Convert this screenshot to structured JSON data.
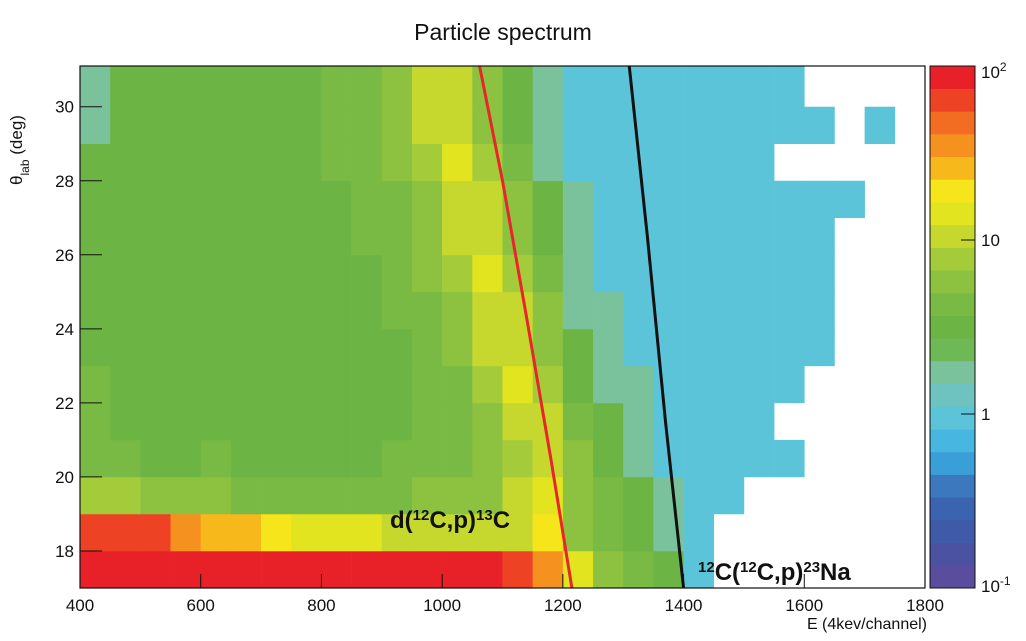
{
  "chart_data": {
    "type": "heatmap",
    "title": "Particle spectrum",
    "x_label": "E (4kev/channel)",
    "y_label_parts": [
      {
        "text": "θ"
      },
      {
        "text": "lab",
        "sub": true
      },
      {
        "text": " (deg)"
      }
    ],
    "xlim": [
      400,
      1800
    ],
    "ylim": [
      17,
      31.1
    ],
    "xticks": [
      400,
      600,
      800,
      1000,
      1200,
      1400,
      1600,
      1800
    ],
    "yticks": [
      18,
      20,
      22,
      24,
      26,
      28,
      30
    ],
    "xbins": [
      400,
      450,
      500,
      550,
      600,
      650,
      700,
      750,
      800,
      850,
      900,
      950,
      1000,
      1050,
      1100,
      1150,
      1200,
      1250,
      1300,
      1350,
      1400,
      1450,
      1500,
      1550,
      1600,
      1650,
      1700,
      1750,
      1800
    ],
    "ybins": [
      17,
      18,
      19,
      20,
      21,
      22,
      23,
      24,
      25,
      26,
      27,
      28,
      29,
      30,
      31.1
    ],
    "z": [
      [
        80,
        80,
        80,
        80,
        80,
        80,
        80,
        80,
        80,
        80,
        80,
        80,
        80,
        80,
        70,
        40,
        15,
        5,
        4,
        3,
        1,
        null,
        null,
        null,
        null,
        null,
        null,
        null
      ],
      [
        70,
        70,
        60,
        40,
        30,
        25,
        20,
        15,
        15,
        15,
        12,
        12,
        10,
        10,
        12,
        20,
        6,
        4,
        3,
        2,
        1,
        null,
        null,
        null,
        null,
        null,
        null,
        null
      ],
      [
        8,
        8,
        6,
        5,
        5,
        4,
        4,
        4,
        4,
        4,
        4,
        5,
        5,
        6,
        10,
        15,
        6,
        4,
        3,
        2,
        1,
        1,
        null,
        null,
        null,
        null,
        null,
        null
      ],
      [
        4,
        4,
        3,
        3,
        4,
        3,
        3,
        3,
        3,
        3,
        4,
        4,
        4,
        5,
        9,
        12,
        5,
        3,
        2,
        1,
        1,
        1,
        1,
        1,
        null,
        null,
        null,
        null
      ],
      [
        4,
        3,
        3,
        3,
        3,
        3,
        3,
        3,
        3,
        3,
        3,
        4,
        4,
        6,
        12,
        10,
        4,
        3,
        2,
        1,
        1,
        1,
        1,
        null,
        null,
        null,
        null,
        null
      ],
      [
        4,
        3,
        3,
        3,
        3,
        3,
        3,
        3,
        3,
        3,
        3,
        4,
        4,
        7,
        14,
        8,
        3,
        2,
        2,
        1,
        1,
        1,
        1,
        1,
        null,
        null,
        null,
        null
      ],
      [
        3,
        3,
        3,
        3,
        3,
        3,
        3,
        3,
        3,
        3,
        3,
        4,
        5,
        10,
        12,
        6,
        3,
        2,
        1,
        1,
        1,
        1,
        1,
        1,
        1,
        null,
        null,
        null
      ],
      [
        3,
        3,
        3,
        3,
        3,
        3,
        3,
        3,
        3,
        3,
        4,
        4,
        6,
        12,
        10,
        5,
        2,
        2,
        1,
        1,
        1,
        1,
        1,
        1,
        1,
        null,
        null,
        null
      ],
      [
        3,
        3,
        3,
        3,
        3,
        3,
        3,
        3,
        3,
        3,
        4,
        5,
        8,
        14,
        8,
        4,
        2,
        1,
        1,
        1,
        1,
        1,
        1,
        1,
        1,
        null,
        null,
        null
      ],
      [
        3,
        3,
        3,
        3,
        3,
        3,
        3,
        3,
        3,
        4,
        4,
        5,
        10,
        12,
        6,
        3,
        2,
        1,
        1,
        1,
        1,
        1,
        1,
        1,
        1,
        null,
        null,
        null
      ],
      [
        3,
        3,
        3,
        3,
        3,
        3,
        3,
        3,
        3,
        4,
        4,
        6,
        12,
        10,
        5,
        3,
        2,
        1,
        1,
        1,
        1,
        1,
        1,
        1,
        1,
        1,
        null,
        null
      ],
      [
        3,
        3,
        3,
        3,
        3,
        3,
        3,
        3,
        4,
        4,
        5,
        8,
        14,
        8,
        4,
        2,
        1,
        1,
        1,
        1,
        1,
        1,
        1,
        null,
        null,
        null,
        null,
        null
      ],
      [
        2,
        3,
        3,
        3,
        3,
        3,
        3,
        3,
        4,
        4,
        5,
        10,
        12,
        6,
        3,
        2,
        1,
        1,
        1,
        1,
        1,
        1,
        1,
        1,
        1,
        null,
        1,
        null
      ],
      [
        2,
        3,
        3,
        3,
        3,
        3,
        3,
        3,
        4,
        4,
        6,
        12,
        10,
        5,
        3,
        2,
        1,
        1,
        1,
        1,
        1,
        1,
        1,
        1,
        null,
        null,
        null,
        null
      ]
    ],
    "zlim": [
      0.1,
      100
    ],
    "zlog": true,
    "zticks": [
      {
        "value": 0.1,
        "label": "10",
        "sup": "-1"
      },
      1,
      10,
      {
        "value": 100,
        "label": "10",
        "sup": "2"
      }
    ],
    "palette": [
      "#5a4d9e",
      "#4a52a1",
      "#3e5aa8",
      "#3b64b0",
      "#3b78bd",
      "#3a9fd8",
      "#47b6e0",
      "#5cc4d9",
      "#6ec3c0",
      "#7ac29c",
      "#6eb955",
      "#6cb544",
      "#78ba43",
      "#8cc240",
      "#a4cc3a",
      "#c6d82e",
      "#e2e41f",
      "#f6e51b",
      "#f7b81c",
      "#f5911f",
      "#f26d22",
      "#ee4225",
      "#e82128"
    ],
    "lines": [
      {
        "color": "#e8262a",
        "x": [
          1062,
          1100,
          1140,
          1180,
          1215
        ],
        "y": [
          31.1,
          28,
          24.3,
          20.5,
          17
        ]
      },
      {
        "color": "#111111",
        "x": [
          1310,
          1340,
          1370,
          1400
        ],
        "y": [
          31.1,
          26.5,
          21.5,
          17
        ]
      }
    ],
    "annotations": [
      {
        "color": "#e8262a",
        "parts": [
          {
            "text": "d("
          },
          {
            "text": "12",
            "sup": true
          },
          {
            "text": "C,p)"
          },
          {
            "text": "13",
            "sup": true
          },
          {
            "text": "C"
          }
        ]
      },
      {
        "color": "#111111",
        "parts": [
          {
            "text": "12",
            "sup": true
          },
          {
            "text": "C("
          },
          {
            "text": "12",
            "sup": true
          },
          {
            "text": "C,p)"
          },
          {
            "text": "23",
            "sup": true
          },
          {
            "text": "Na"
          }
        ]
      }
    ]
  }
}
